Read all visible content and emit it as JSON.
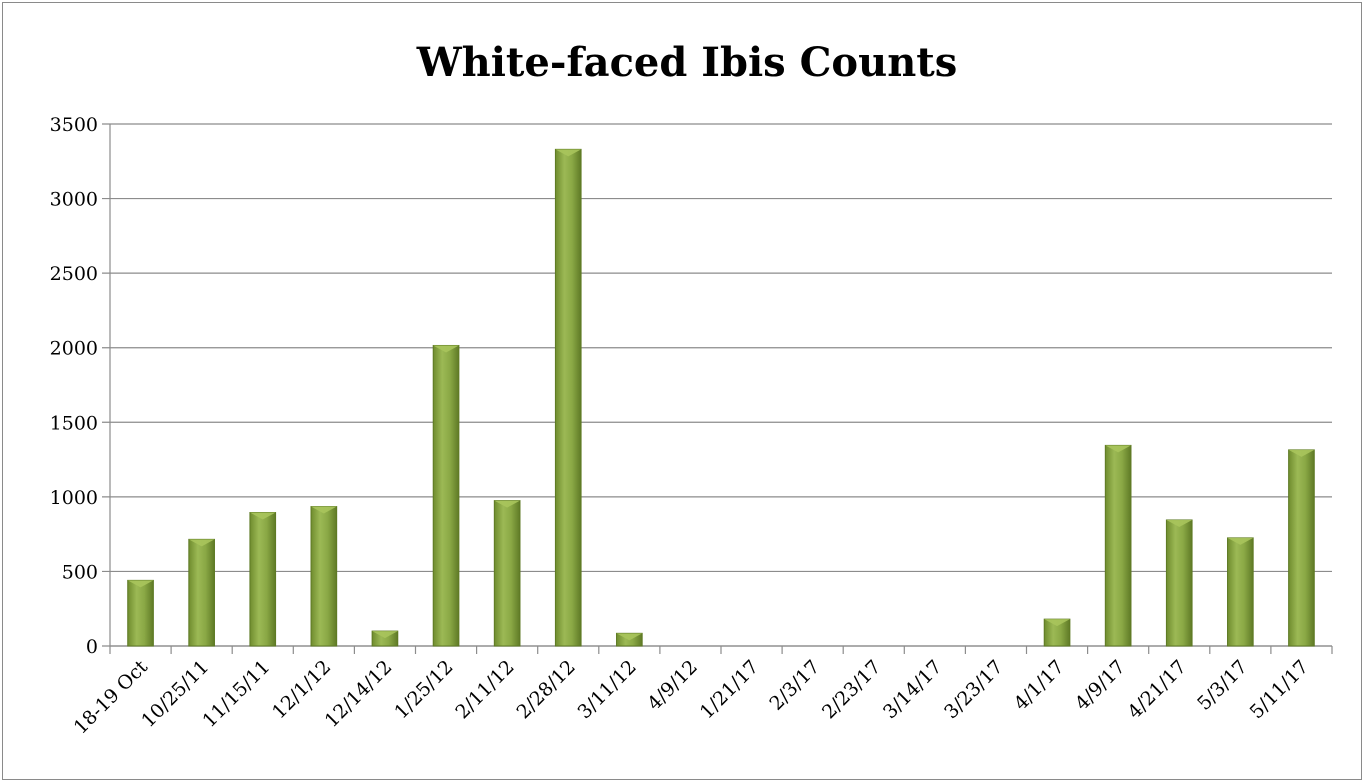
{
  "chart_data": {
    "type": "bar",
    "title": "White-faced Ibis Counts",
    "xlabel": "",
    "ylabel": "",
    "categories": [
      "18-19 Oct",
      "10/25/11",
      "11/15/11",
      "12/1/12",
      "12/14/12",
      "1/25/12",
      "2/11/12",
      "2/28/12",
      "3/11/12",
      "4/9/12",
      "1/21/17",
      "2/3/17",
      "2/23/17",
      "3/14/17",
      "3/23/17",
      "4/1/17",
      "4/9/17",
      "4/21/17",
      "5/3/17",
      "5/11/17"
    ],
    "values": [
      440,
      715,
      895,
      935,
      100,
      2015,
      975,
      3330,
      85,
      0,
      0,
      0,
      0,
      0,
      0,
      180,
      1345,
      845,
      725,
      1315
    ],
    "ylim": [
      0,
      3500
    ],
    "yticks": [
      0,
      500,
      1000,
      1500,
      2000,
      2500,
      3000,
      3500
    ],
    "grid": true,
    "legend": "none",
    "bar_color": "#7d9a3a",
    "bar_highlight": "#a8c45c",
    "bar_edge": "#5e7a24"
  }
}
